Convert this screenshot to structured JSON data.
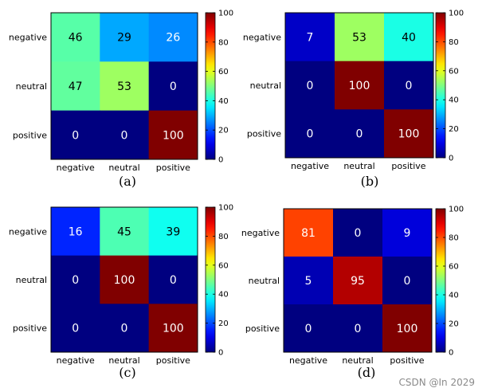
{
  "watermark": "CSDN @In 2029",
  "chart_data": [
    {
      "type": "heatmap",
      "caption": "(a)",
      "rows": [
        "negative",
        "neutral",
        "positive"
      ],
      "columns": [
        "negative",
        "neutral",
        "positive"
      ],
      "values": [
        [
          46,
          29,
          26
        ],
        [
          47,
          53,
          0
        ],
        [
          0,
          0,
          100
        ]
      ],
      "colorbar": {
        "range": [
          0,
          100
        ],
        "ticks": [
          0,
          20,
          40,
          60,
          80,
          100
        ],
        "colormap": "jet"
      }
    },
    {
      "type": "heatmap",
      "caption": "(b)",
      "rows": [
        "negative",
        "neutral",
        "positive"
      ],
      "columns": [
        "negative",
        "neutral",
        "positive"
      ],
      "values": [
        [
          7,
          53,
          40
        ],
        [
          0,
          100,
          0
        ],
        [
          0,
          0,
          100
        ]
      ],
      "colorbar": {
        "range": [
          0,
          100
        ],
        "ticks": [
          0,
          20,
          40,
          60,
          80,
          100
        ],
        "colormap": "jet"
      }
    },
    {
      "type": "heatmap",
      "caption": "(c)",
      "rows": [
        "negative",
        "neutral",
        "positive"
      ],
      "columns": [
        "negative",
        "neutral",
        "positive"
      ],
      "values": [
        [
          16,
          45,
          39
        ],
        [
          0,
          100,
          0
        ],
        [
          0,
          0,
          100
        ]
      ],
      "colorbar": {
        "range": [
          0,
          100
        ],
        "ticks": [
          0,
          20,
          40,
          60,
          80,
          100
        ],
        "colormap": "jet"
      }
    },
    {
      "type": "heatmap",
      "caption": "(d)",
      "rows": [
        "negative",
        "neutral",
        "positive"
      ],
      "columns": [
        "negative",
        "neutral",
        "positive"
      ],
      "values": [
        [
          81,
          0,
          9
        ],
        [
          5,
          95,
          0
        ],
        [
          0,
          0,
          100
        ]
      ],
      "colorbar": {
        "range": [
          0,
          100
        ],
        "ticks": [
          0,
          20,
          40,
          60,
          80,
          100
        ],
        "colormap": "jet"
      }
    }
  ]
}
